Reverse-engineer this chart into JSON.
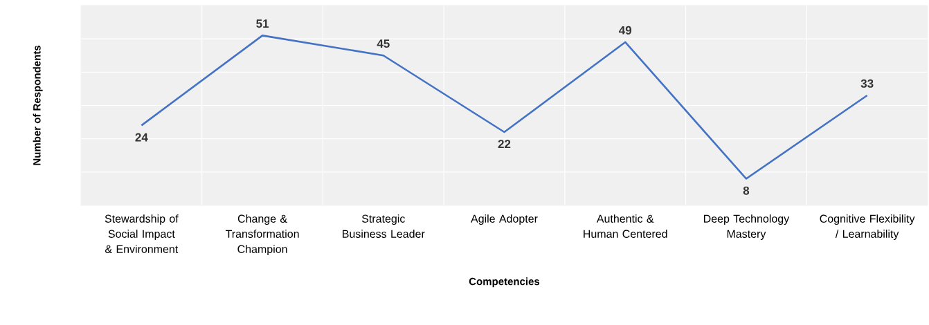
{
  "chart_data": {
    "type": "line",
    "xlabel": "Competencies",
    "ylabel": "Number of Respondents",
    "categories": [
      "Stewardship of Social Impact & Environment",
      "Change & Transformation Champion",
      "Strategic Business Leader",
      "Agile Adopter",
      "Authentic & Human Centered",
      "Deep Technology Mastery",
      "Cognitive Flexibility / Learnability"
    ],
    "values": [
      24,
      51,
      45,
      22,
      49,
      8,
      33
    ],
    "color": "#4472c4",
    "ylim": [
      0,
      60
    ],
    "yticks": [
      {
        "value": 0,
        "label": null
      },
      {
        "value": 10,
        "label": null
      },
      {
        "value": 20,
        "label": null
      },
      {
        "value": 30,
        "label": null
      },
      {
        "value": 40,
        "label": null
      },
      {
        "value": 50,
        "label": null
      },
      {
        "value": 60,
        "label": null
      }
    ],
    "tick_labels": "x",
    "grid": true,
    "data_labels": true,
    "marker": "none",
    "line_style": "solid"
  }
}
